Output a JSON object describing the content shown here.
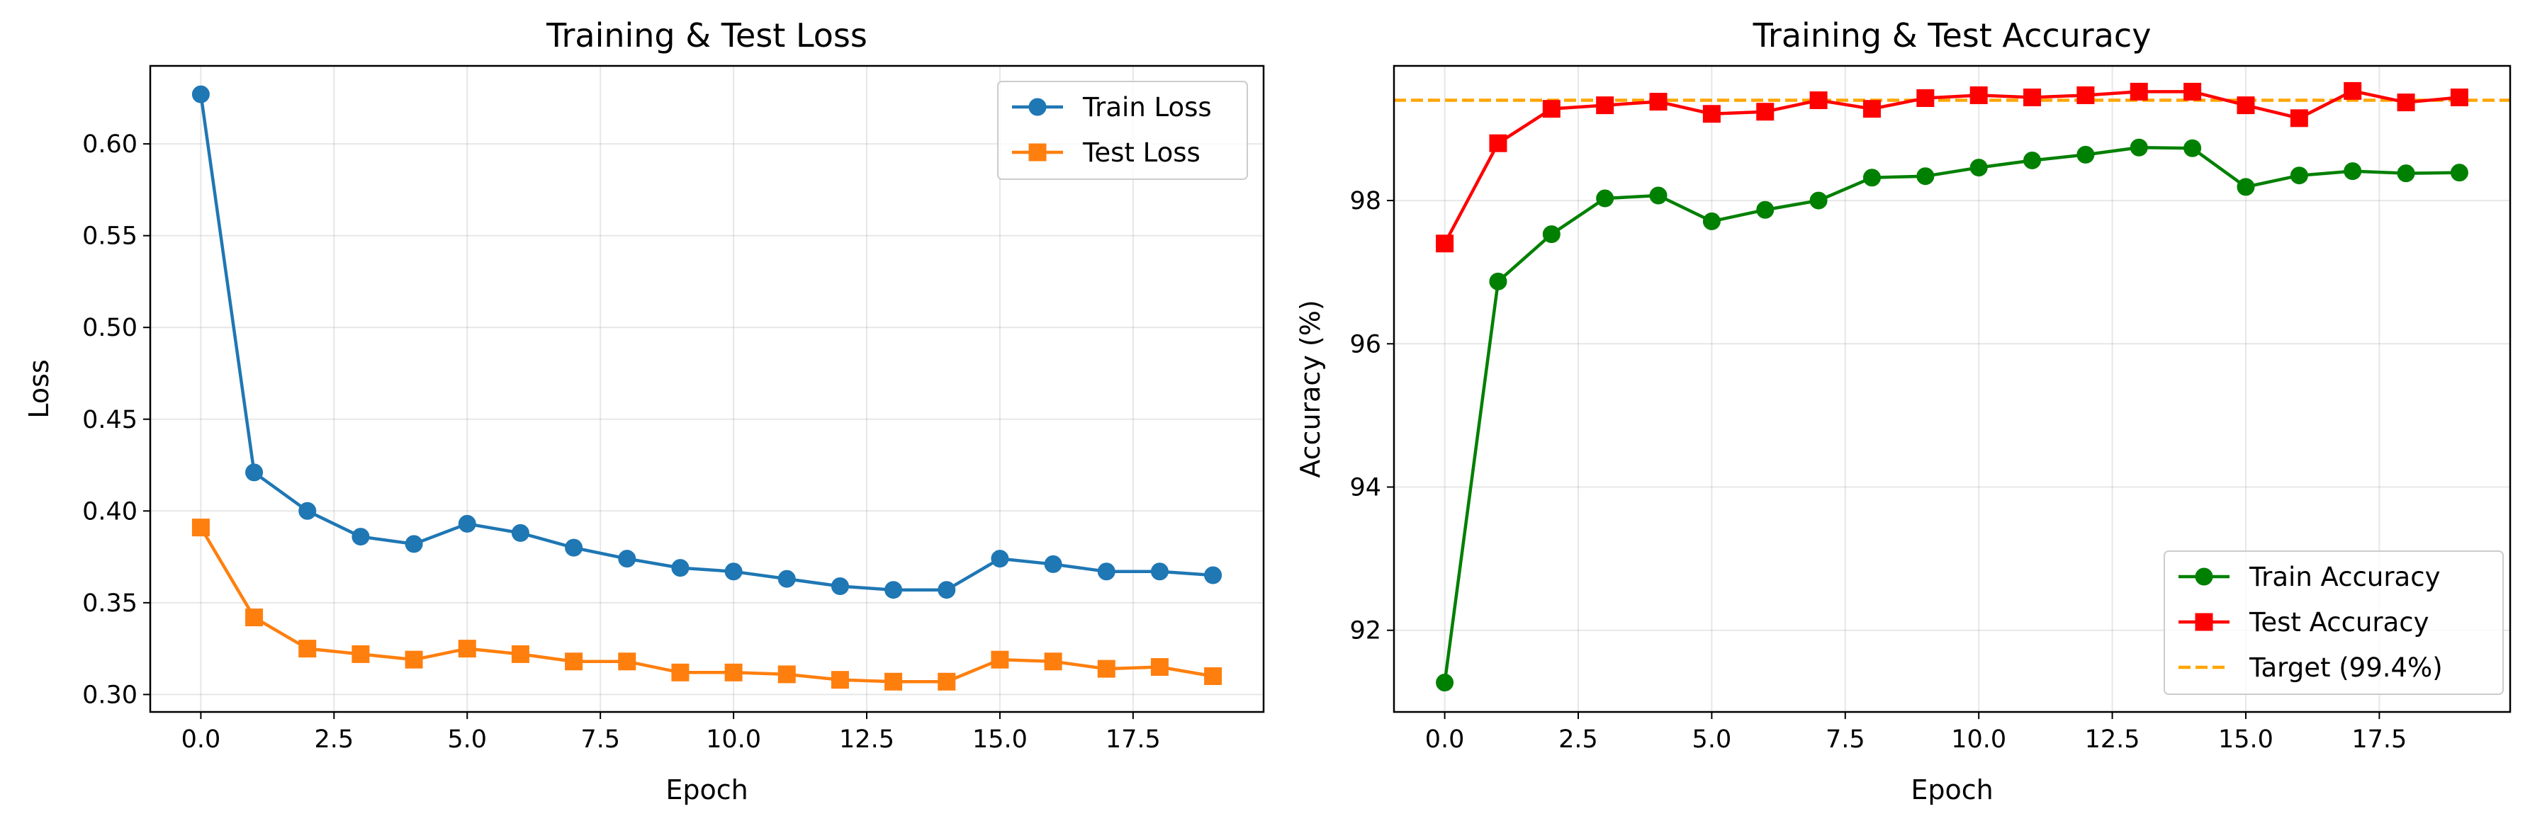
{
  "chart_data": [
    {
      "type": "line",
      "title": "Training & Test Loss",
      "xlabel": "Epoch",
      "ylabel": "Loss",
      "xlim": [
        -0.95,
        19.95
      ],
      "ylim": [
        0.2905,
        0.6425
      ],
      "xticks": [
        0.0,
        2.5,
        5.0,
        7.5,
        10.0,
        12.5,
        15.0,
        17.5
      ],
      "xtick_labels": [
        "0.0",
        "2.5",
        "5.0",
        "7.5",
        "10.0",
        "12.5",
        "15.0",
        "17.5"
      ],
      "yticks": [
        0.3,
        0.35,
        0.4,
        0.45,
        0.5,
        0.55,
        0.6
      ],
      "ytick_labels": [
        "0.30",
        "0.35",
        "0.40",
        "0.45",
        "0.50",
        "0.55",
        "0.60"
      ],
      "grid": true,
      "legend_position": "top-right",
      "x": [
        0,
        1,
        2,
        3,
        4,
        5,
        6,
        7,
        8,
        9,
        10,
        11,
        12,
        13,
        14,
        15,
        16,
        17,
        18,
        19
      ],
      "series": [
        {
          "name": "Train Loss",
          "color": "#1f77b4",
          "marker": "circle",
          "values": [
            0.627,
            0.421,
            0.4,
            0.386,
            0.382,
            0.393,
            0.388,
            0.38,
            0.374,
            0.369,
            0.367,
            0.363,
            0.359,
            0.357,
            0.357,
            0.374,
            0.371,
            0.367,
            0.367,
            0.365
          ]
        },
        {
          "name": "Test Loss",
          "color": "#ff7f0e",
          "marker": "square",
          "values": [
            0.391,
            0.342,
            0.325,
            0.322,
            0.319,
            0.325,
            0.322,
            0.318,
            0.318,
            0.312,
            0.312,
            0.311,
            0.308,
            0.307,
            0.307,
            0.319,
            0.318,
            0.314,
            0.315,
            0.31
          ]
        }
      ]
    },
    {
      "type": "line",
      "title": "Training & Test Accuracy",
      "xlabel": "Epoch",
      "ylabel": "Accuracy (%)",
      "xlim": [
        -0.95,
        19.95
      ],
      "ylim": [
        90.86,
        99.88
      ],
      "xticks": [
        0.0,
        2.5,
        5.0,
        7.5,
        10.0,
        12.5,
        15.0,
        17.5
      ],
      "xtick_labels": [
        "0.0",
        "2.5",
        "5.0",
        "7.5",
        "10.0",
        "12.5",
        "15.0",
        "17.5"
      ],
      "yticks": [
        92,
        94,
        96,
        98
      ],
      "ytick_labels": [
        "92",
        "94",
        "96",
        "98"
      ],
      "grid": true,
      "legend_position": "bottom-right",
      "x": [
        0,
        1,
        2,
        3,
        4,
        5,
        6,
        7,
        8,
        9,
        10,
        11,
        12,
        13,
        14,
        15,
        16,
        17,
        18,
        19
      ],
      "series": [
        {
          "name": "Train Accuracy",
          "color": "#008000",
          "marker": "circle",
          "values": [
            91.27,
            96.87,
            97.53,
            98.03,
            98.07,
            97.71,
            97.87,
            98.0,
            98.32,
            98.34,
            98.46,
            98.56,
            98.64,
            98.74,
            98.73,
            98.19,
            98.35,
            98.41,
            98.38,
            98.39
          ]
        },
        {
          "name": "Test Accuracy",
          "color": "#ff0000",
          "marker": "square",
          "values": [
            97.4,
            98.8,
            99.28,
            99.33,
            99.38,
            99.21,
            99.24,
            99.4,
            99.28,
            99.43,
            99.47,
            99.44,
            99.47,
            99.52,
            99.52,
            99.33,
            99.15,
            99.53,
            99.37,
            99.44
          ]
        }
      ],
      "reference_lines": [
        {
          "name": "Target (99.4%)",
          "color": "#ffa500",
          "style": "dashed",
          "y": 99.4
        }
      ]
    }
  ]
}
